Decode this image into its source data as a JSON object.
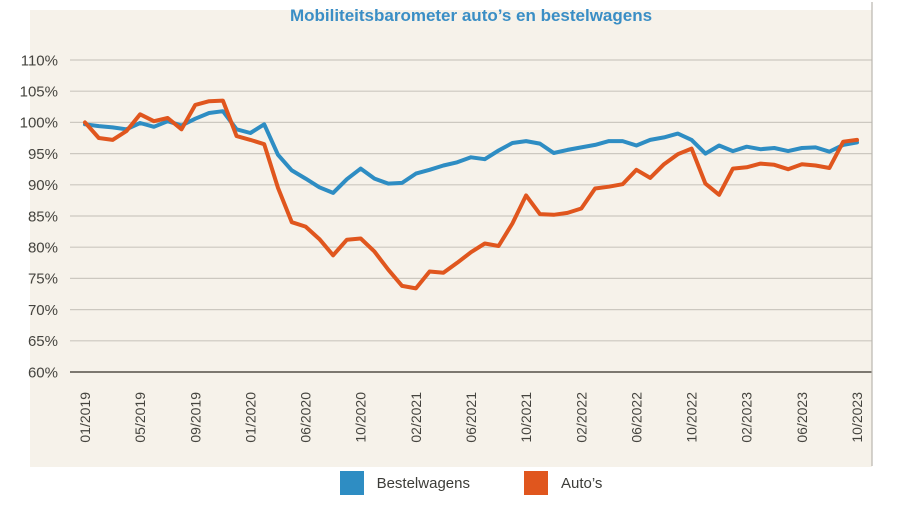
{
  "title": "Mobiliteitsbarometer auto’s en bestelwagens",
  "colors": {
    "panel_background": "#f6f2ea",
    "title": "#3a8ec5",
    "gridline": "#ccc8c0",
    "axis_baseline": "#6b675f",
    "right_border": "#b9b6af",
    "tick_text": "#45443f",
    "bestelwagens": "#2e8dc3",
    "autos": "#e0561e"
  },
  "chart_data": {
    "type": "line",
    "title": "Mobiliteitsbarometer auto’s en bestelwagens",
    "xlabel": "",
    "ylabel": "",
    "ylim": [
      60,
      110
    ],
    "grid": true,
    "legend_position": "bottom",
    "y_tick_labels": [
      "110%",
      "105%",
      "100%",
      "95%",
      "90%",
      "85%",
      "80%",
      "75%",
      "70%",
      "65%",
      "60%"
    ],
    "y_tick_values": [
      110,
      105,
      100,
      95,
      90,
      85,
      80,
      75,
      70,
      65,
      60
    ],
    "x_tick_labels": [
      "01/2019",
      "05/2019",
      "09/2019",
      "01/2020",
      "06/2020",
      "10/2020",
      "02/2021",
      "06/2021",
      "10/2021",
      "02/2022",
      "06/2022",
      "10/2022",
      "02/2023",
      "06/2023",
      "10/2023"
    ],
    "x_tick_every": 4,
    "points_count": 57,
    "series": [
      {
        "name": "Bestelwagens",
        "color": "#2e8dc3",
        "values": [
          99.7,
          99.4,
          99.2,
          98.9,
          99.9,
          99.3,
          100.2,
          99.5,
          100.6,
          101.5,
          101.8,
          98.9,
          98.3,
          99.7,
          94.8,
          92.3,
          91.0,
          89.6,
          88.7,
          90.9,
          92.6,
          91.0,
          90.2,
          90.3,
          91.8,
          92.4,
          93.1,
          93.6,
          94.4,
          94.1,
          95.5,
          96.7,
          97.0,
          96.6,
          95.1,
          95.6,
          96.0,
          96.4,
          97.0,
          97.0,
          96.3,
          97.2,
          97.6,
          98.2,
          97.2,
          95.0,
          96.3,
          95.4,
          96.1,
          95.7,
          95.9,
          95.4,
          95.9,
          96.0,
          95.3,
          96.4,
          96.8
        ]
      },
      {
        "name": "Auto’s",
        "color": "#e0561e",
        "values": [
          100.0,
          97.5,
          97.2,
          98.6,
          101.3,
          100.2,
          100.7,
          98.9,
          102.8,
          103.4,
          103.5,
          97.8,
          97.2,
          96.5,
          89.5,
          84.0,
          83.3,
          81.3,
          78.7,
          81.2,
          81.4,
          79.3,
          76.4,
          73.8,
          73.4,
          76.1,
          75.9,
          77.5,
          79.2,
          80.6,
          80.2,
          83.8,
          88.3,
          85.3,
          85.2,
          85.5,
          86.2,
          89.4,
          89.7,
          90.1,
          92.4,
          91.1,
          93.3,
          94.9,
          95.8,
          90.2,
          88.4,
          92.6,
          92.8,
          93.4,
          93.2,
          92.5,
          93.3,
          93.1,
          92.7,
          96.9,
          97.2
        ]
      }
    ]
  },
  "legend": {
    "items": [
      {
        "label": "Bestelwagens",
        "color": "#2e8dc3"
      },
      {
        "label": "Auto’s",
        "color": "#e0561e"
      }
    ]
  }
}
